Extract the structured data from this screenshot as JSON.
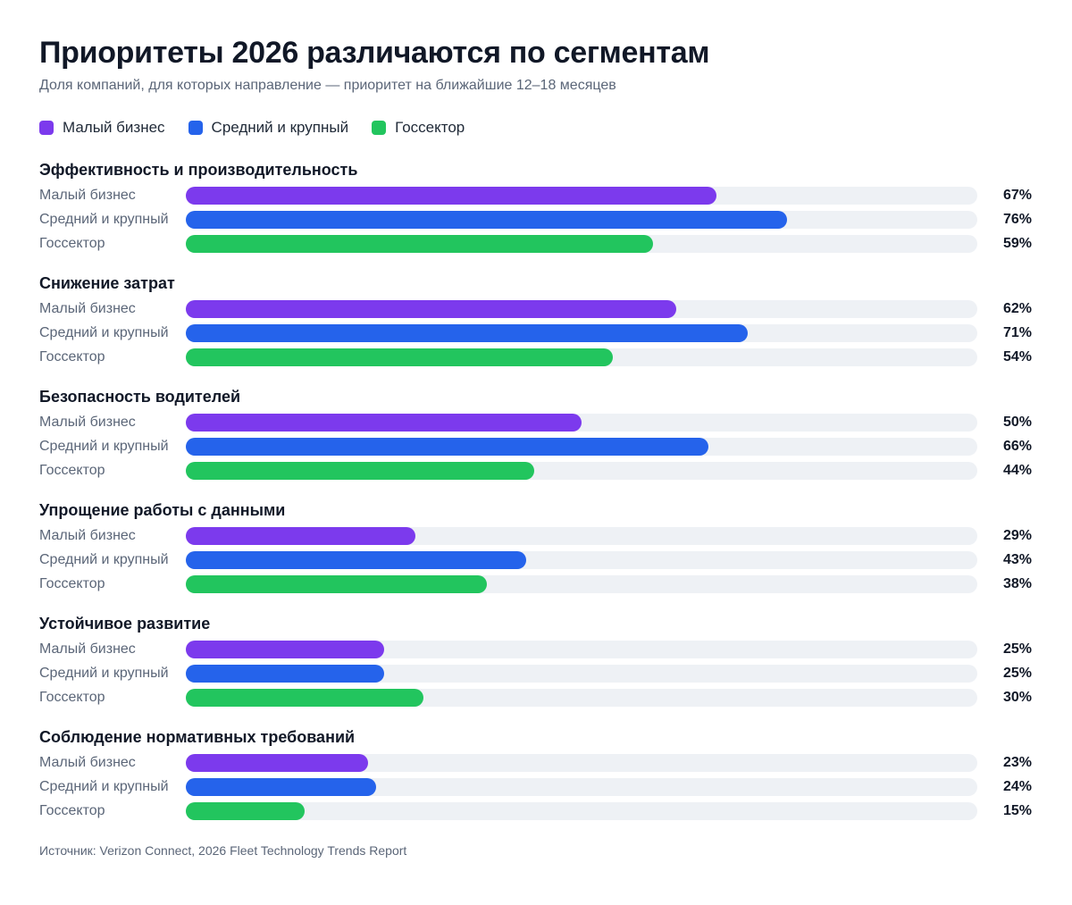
{
  "title": "Приоритеты 2026 различаются по сегментам",
  "subtitle": "Доля компаний, для которых направление — приоритет на ближайшие 12–18 месяцев",
  "source": "Источник: Verizon Connect, 2026 Fleet Technology Trends Report",
  "colors": {
    "small": "#7c3aed",
    "large": "#2563eb",
    "gov": "#22c55e",
    "track": "#eef1f5"
  },
  "chart_data": {
    "type": "bar",
    "orientation": "horizontal",
    "unit": "%",
    "xlim": [
      0,
      100
    ],
    "grid": false,
    "legend_position": "top-left",
    "categories": [
      "Эффективность и производительность",
      "Снижение затрат",
      "Безопасность водителей",
      "Упрощение работы с данными",
      "Устойчивое развитие",
      "Соблюдение нормативных требований"
    ],
    "series": [
      {
        "name": "Малый бизнес",
        "color": "#7c3aed",
        "values": [
          67,
          62,
          50,
          29,
          25,
          23
        ]
      },
      {
        "name": "Средний и крупный",
        "color": "#2563eb",
        "values": [
          76,
          71,
          66,
          43,
          25,
          24
        ]
      },
      {
        "name": "Госсектор",
        "color": "#22c55e",
        "values": [
          59,
          54,
          44,
          38,
          30,
          15
        ]
      }
    ]
  }
}
